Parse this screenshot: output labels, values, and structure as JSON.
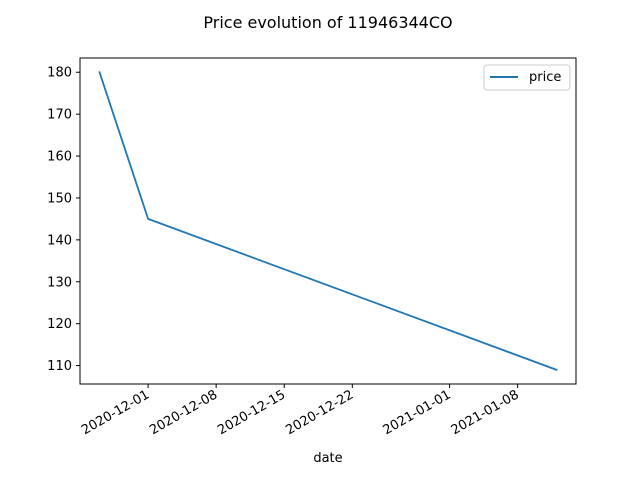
{
  "chart_data": {
    "type": "line",
    "title": "Price evolution of 11946344CO",
    "xlabel": "date",
    "ylabel": "",
    "x_type": "date",
    "xlim": [
      "2020-11-24",
      "2021-01-14"
    ],
    "ylim": [
      105.6,
      183.4
    ],
    "x_ticks": [
      "2020-12-01",
      "2020-12-08",
      "2020-12-15",
      "2020-12-22",
      "2021-01-01",
      "2021-01-08"
    ],
    "y_ticks": [
      110,
      120,
      130,
      140,
      150,
      160,
      170,
      180
    ],
    "grid": false,
    "legend": {
      "position": "upper right"
    },
    "series": [
      {
        "name": "price",
        "color": "#1f77b4",
        "x": [
          "2020-11-26",
          "2020-12-01",
          "2021-01-12"
        ],
        "y": [
          180,
          145,
          109
        ]
      }
    ]
  }
}
